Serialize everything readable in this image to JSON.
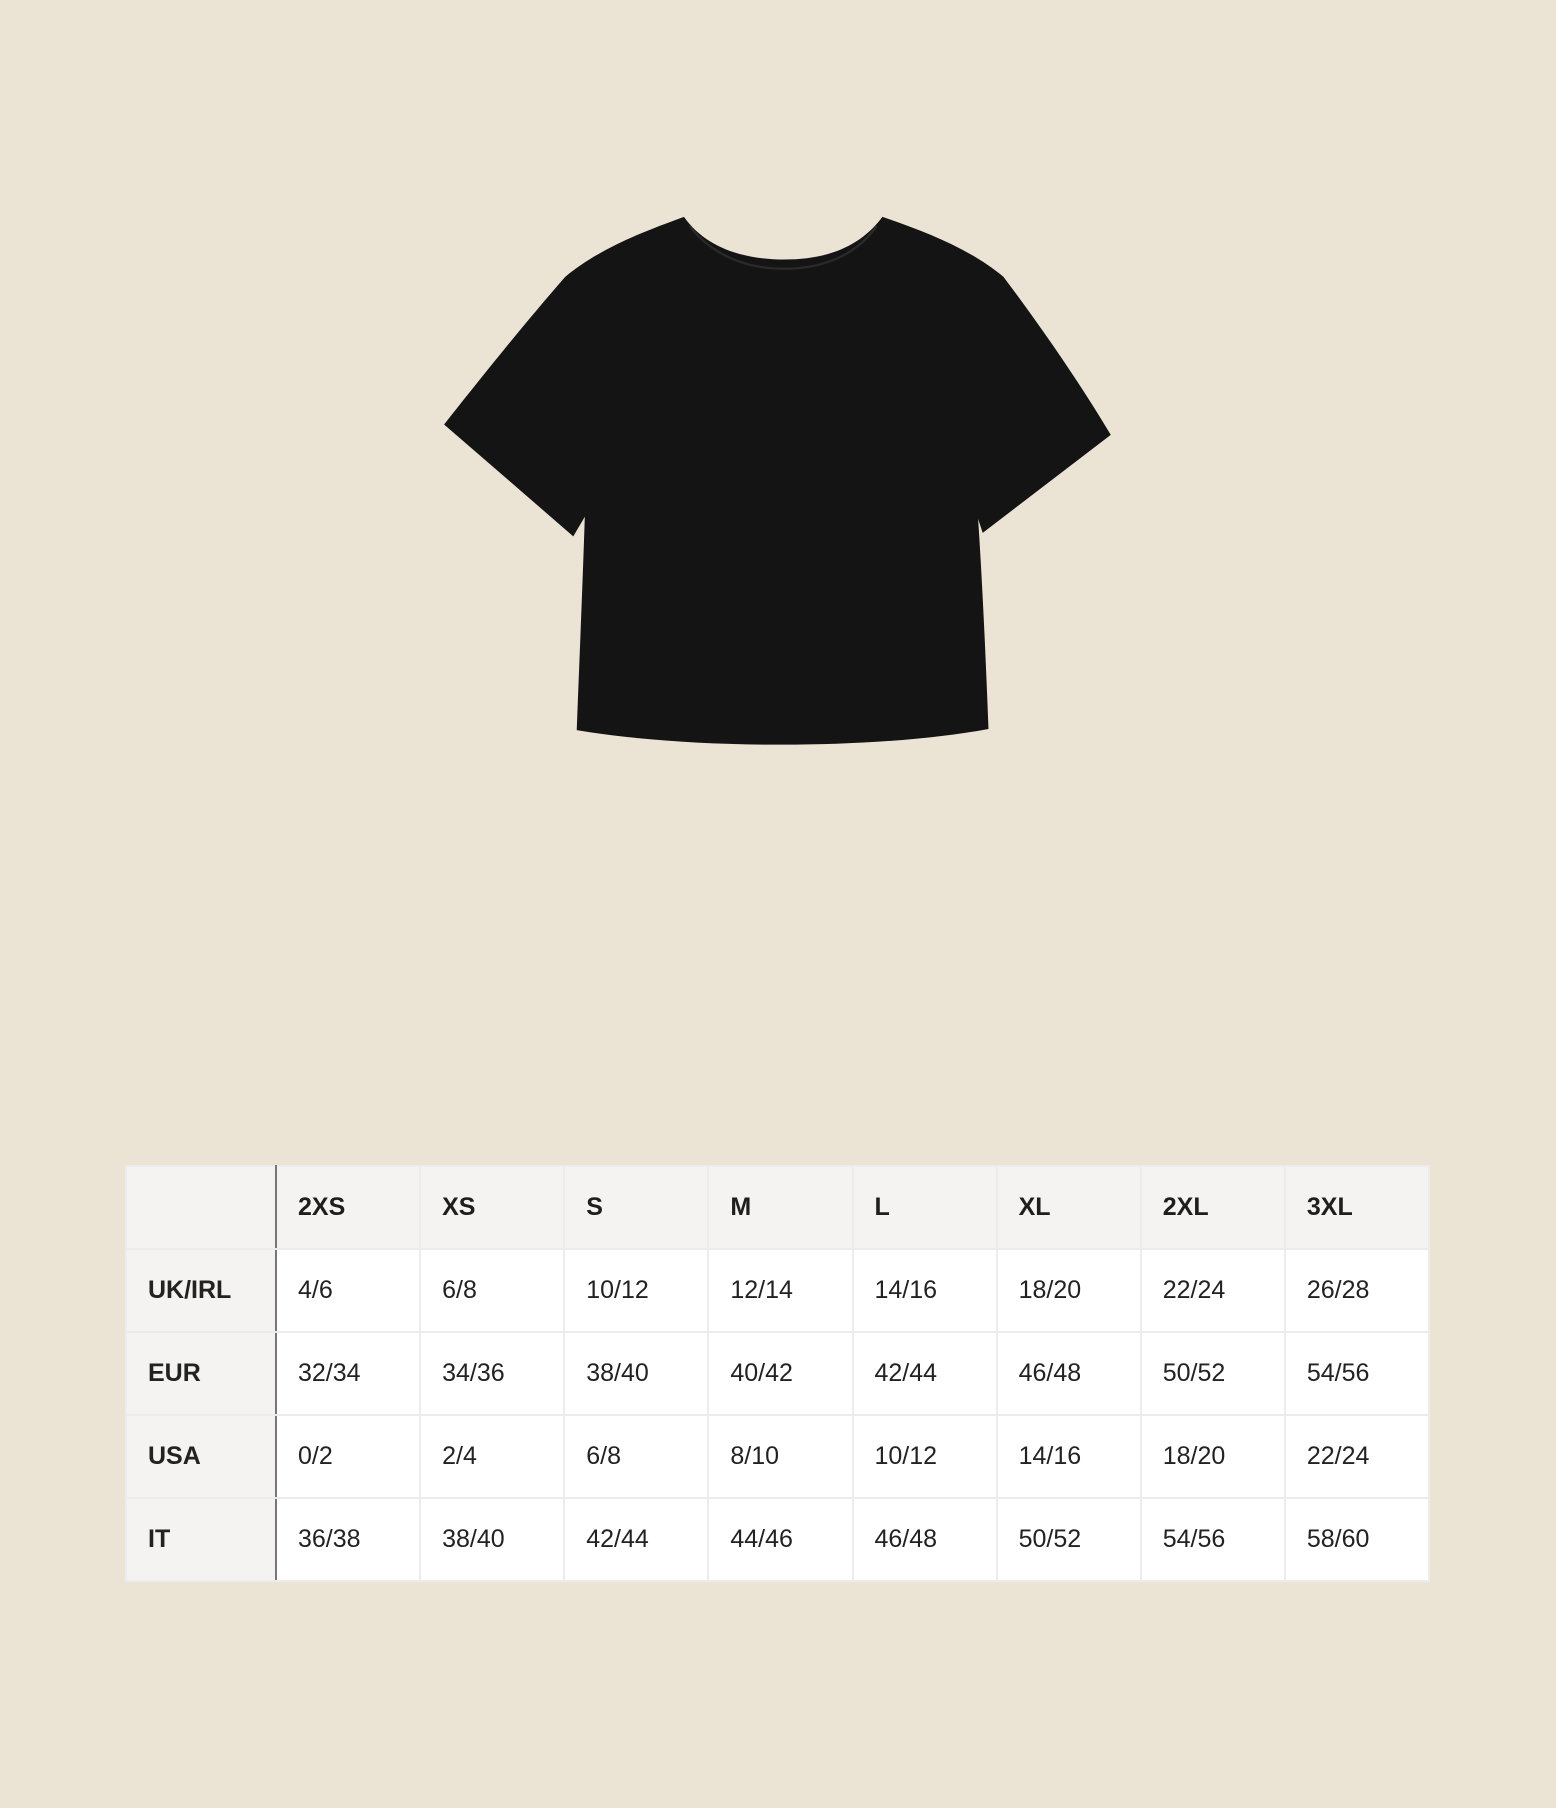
{
  "product": {
    "image": "black-crop-tshirt",
    "color": "#141414"
  },
  "size_table": {
    "headers": [
      "",
      "2XS",
      "XS",
      "S",
      "M",
      "L",
      "XL",
      "2XL",
      "3XL"
    ],
    "rows": [
      {
        "label": "UK/IRL",
        "values": [
          "4/6",
          "6/8",
          "10/12",
          "12/14",
          "14/16",
          "18/20",
          "22/24",
          "26/28"
        ]
      },
      {
        "label": "EUR",
        "values": [
          "32/34",
          "34/36",
          "38/40",
          "40/42",
          "42/44",
          "46/48",
          "50/52",
          "54/56"
        ]
      },
      {
        "label": "USA",
        "values": [
          "0/2",
          "2/4",
          "6/8",
          "8/10",
          "10/12",
          "14/16",
          "18/20",
          "22/24"
        ]
      },
      {
        "label": "IT",
        "values": [
          "36/38",
          "38/40",
          "42/44",
          "44/46",
          "46/48",
          "50/52",
          "54/56",
          "58/60"
        ]
      }
    ]
  }
}
